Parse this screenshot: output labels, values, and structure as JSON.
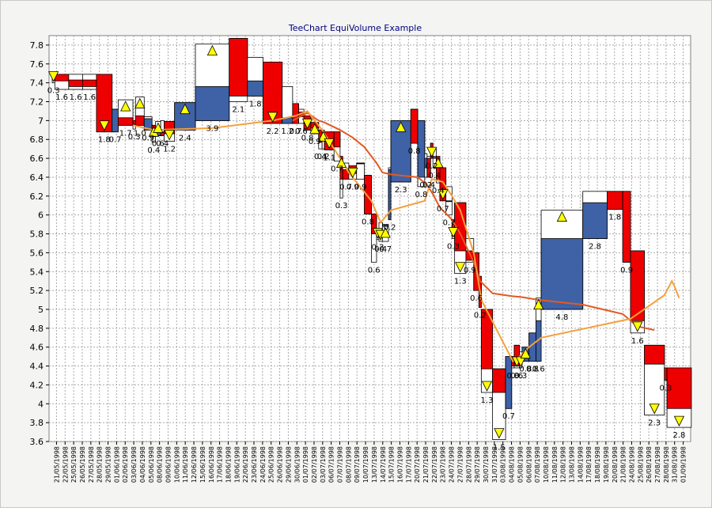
{
  "chart_data": {
    "type": "equivolume",
    "title": "TeeChart EquiVolume Example",
    "ylim": [
      3.6,
      7.9
    ],
    "yticks": [
      "3.6",
      "3.8",
      "4",
      "4.2",
      "4.4",
      "4.6",
      "4.8",
      "5",
      "5.2",
      "5.4",
      "5.6",
      "5.8",
      "6",
      "6.2",
      "6.4",
      "6.6",
      "6.8",
      "7",
      "7.2",
      "7.4",
      "7.6",
      "7.8"
    ],
    "grid": true,
    "colors": {
      "up": "#3f62a6",
      "down": "#ee0000",
      "neutral": "#ffffff",
      "ma_fast": "#f5a03c",
      "ma_slow": "#e25a22",
      "marker": "#ffff00"
    },
    "candles": [
      {
        "date": "21/05/1998",
        "open": 7.47,
        "high": 7.5,
        "low": 7.4,
        "close": 7.47,
        "volume": "0.3",
        "marker": "down"
      },
      {
        "date": "22/05/1998",
        "open": 7.49,
        "high": 7.49,
        "low": 7.33,
        "close": 7.42,
        "volume": "1.6"
      },
      {
        "date": "25/05/1998",
        "open": 7.43,
        "high": 7.49,
        "low": 7.33,
        "close": 7.36,
        "volume": "1.6"
      },
      {
        "date": "26/05/1998",
        "open": 7.43,
        "high": 7.49,
        "low": 7.33,
        "close": 7.36,
        "volume": "1.6"
      },
      {
        "date": "27/05/1998",
        "open": 7.49,
        "high": 7.49,
        "low": 6.88,
        "close": 6.88,
        "volume": "1.8",
        "marker": "down"
      },
      {
        "date": "28/05/1998",
        "open": 6.88,
        "high": 7.12,
        "low": 6.88,
        "close": 7.12,
        "volume": "0.7"
      },
      {
        "date": "29/05/1998",
        "open": 7.03,
        "high": 7.22,
        "low": 6.95,
        "close": 6.95,
        "volume": "1.7",
        "marker": "up"
      },
      {
        "date": "01/06/1998",
        "open": 7.0,
        "high": 7.0,
        "low": 6.91,
        "close": 6.96,
        "volume": "0.3"
      },
      {
        "date": "02/06/1998",
        "open": 7.05,
        "high": 7.25,
        "low": 6.95,
        "close": 6.95,
        "volume": "1.0",
        "marker": "up"
      },
      {
        "date": "03/06/1998",
        "open": 6.9,
        "high": 7.04,
        "low": 6.9,
        "close": 7.02,
        "volume": "0.9"
      },
      {
        "date": "04/06/1998",
        "open": 6.95,
        "high": 6.95,
        "low": 6.77,
        "close": 6.83,
        "volume": "0.4",
        "marker": "up"
      },
      {
        "date": "05/06/1998",
        "open": 6.84,
        "high": 6.99,
        "low": 6.84,
        "close": 6.92,
        "volume": "0.6",
        "marker": "up"
      },
      {
        "date": "08/06/1998",
        "open": 6.88,
        "high": 7.0,
        "low": 6.84,
        "close": 6.84,
        "volume": "0.4"
      },
      {
        "date": "09/06/1998",
        "open": 6.99,
        "high": 6.99,
        "low": 6.78,
        "close": 6.86,
        "volume": "1.2",
        "marker": "down"
      },
      {
        "date": "10/06/1998",
        "open": 6.9,
        "high": 7.19,
        "low": 6.9,
        "close": 7.19,
        "volume": "2.4",
        "marker": "up"
      },
      {
        "date": "11/06/1998",
        "open": 7.0,
        "high": 7.81,
        "low": 7.0,
        "close": 7.36,
        "volume": "3.9",
        "marker": "up"
      },
      {
        "date": "12/06/1998",
        "open": 7.87,
        "high": 7.87,
        "low": 7.2,
        "close": 7.26,
        "volume": "2.1"
      },
      {
        "date": "15/06/1998",
        "open": 7.26,
        "high": 7.67,
        "low": 7.26,
        "close": 7.42,
        "volume": "1.8"
      },
      {
        "date": "16/06/1998",
        "open": 7.62,
        "high": 7.62,
        "low": 6.97,
        "close": 6.97,
        "volume": "2.2",
        "marker": "down"
      },
      {
        "date": "17/06/1998",
        "open": 6.97,
        "high": 7.36,
        "low": 6.97,
        "close": 7.03,
        "volume": "1.2"
      },
      {
        "date": "18/06/1998",
        "open": 7.18,
        "high": 7.18,
        "low": 6.97,
        "close": 6.97,
        "volume": "0.7"
      },
      {
        "date": "19/06/1998",
        "open": 7.09,
        "high": 7.12,
        "low": 6.97,
        "close": 7.04,
        "volume": "0.6"
      },
      {
        "date": "22/06/1998",
        "open": 7.05,
        "high": 7.05,
        "low": 6.9,
        "close": 6.9,
        "volume": "0.8",
        "marker": "down"
      },
      {
        "date": "23/06/1998",
        "open": 6.98,
        "high": 6.98,
        "low": 6.86,
        "close": 6.92,
        "volume": "0.9",
        "marker": "up"
      },
      {
        "date": "24/06/1998",
        "open": 6.9,
        "high": 6.9,
        "low": 6.7,
        "close": 6.77,
        "volume": "0.4"
      },
      {
        "date": "25/06/1998",
        "open": 6.85,
        "high": 6.9,
        "low": 6.7,
        "close": 6.85,
        "volume": "0.2",
        "marker": "up"
      },
      {
        "date": "26/06/1998",
        "open": 6.88,
        "high": 6.88,
        "low": 6.69,
        "close": 6.69,
        "volume": "1.1",
        "marker": "down"
      },
      {
        "date": "29/06/1998",
        "open": 6.88,
        "high": 6.88,
        "low": 6.57,
        "close": 6.72,
        "volume": "0.7"
      },
      {
        "date": "30/06/1998",
        "open": 6.62,
        "high": 6.62,
        "low": 6.18,
        "close": 6.38,
        "volume": "0.3",
        "marker": "up"
      },
      {
        "date": "01/07/1998",
        "open": 6.48,
        "high": 6.55,
        "low": 6.38,
        "close": 6.38,
        "volume": "0.7"
      },
      {
        "date": "02/07/1998",
        "open": 6.52,
        "high": 6.52,
        "low": 6.38,
        "close": 6.44,
        "volume": "0.9",
        "marker": "down"
      },
      {
        "date": "03/07/1998",
        "open": 6.55,
        "high": 6.55,
        "low": 6.38,
        "close": 6.55,
        "volume": "0.9"
      },
      {
        "date": "06/07/1998",
        "open": 6.42,
        "high": 6.42,
        "low": 6.01,
        "close": 6.01,
        "volume": "0.8"
      },
      {
        "date": "07/07/1998",
        "open": 6.01,
        "high": 6.01,
        "low": 5.5,
        "close": 5.8,
        "volume": "0.6"
      },
      {
        "date": "08/07/1998",
        "open": 5.85,
        "high": 5.85,
        "low": 5.74,
        "close": 5.78,
        "volume": "0.2",
        "marker": "down"
      },
      {
        "date": "09/07/1998",
        "open": 5.8,
        "high": 5.92,
        "low": 5.72,
        "close": 5.8,
        "volume": "0.4",
        "marker": "down"
      },
      {
        "date": "10/07/1998",
        "open": 5.88,
        "high": 5.88,
        "low": 5.72,
        "close": 5.9,
        "volume": "0.7",
        "marker": "up"
      },
      {
        "date": "13/07/1998",
        "open": 5.95,
        "high": 6.5,
        "low": 5.95,
        "close": 6.48,
        "volume": "0.2"
      },
      {
        "date": "14/07/1998",
        "open": 6.35,
        "high": 7.0,
        "low": 6.35,
        "close": 7.0,
        "volume": "2.3",
        "marker": "up"
      },
      {
        "date": "15/07/1998",
        "open": 7.12,
        "high": 7.12,
        "low": 6.76,
        "close": 6.76,
        "volume": "0.8"
      },
      {
        "date": "16/07/1998",
        "open": 6.4,
        "high": 7.0,
        "low": 6.3,
        "close": 7.0,
        "volume": "0.8"
      },
      {
        "date": "17/07/1998",
        "open": 6.5,
        "high": 6.65,
        "low": 6.4,
        "close": 6.6,
        "volume": "0.2"
      },
      {
        "date": "20/07/1998",
        "open": 6.6,
        "high": 6.62,
        "low": 6.4,
        "close": 6.4,
        "volume": "0.4"
      },
      {
        "date": "21/07/1998",
        "open": 6.76,
        "high": 6.76,
        "low": 6.6,
        "close": 6.6,
        "volume": "0.2",
        "marker": "down"
      },
      {
        "date": "22/07/1998",
        "open": 6.6,
        "high": 6.7,
        "low": 6.5,
        "close": 6.62,
        "volume": "0.4"
      },
      {
        "date": "23/07/1998",
        "open": 6.62,
        "high": 6.62,
        "low": 6.34,
        "close": 6.38,
        "volume": "0.4",
        "marker": "up"
      },
      {
        "date": "24/07/1998",
        "open": 6.5,
        "high": 6.5,
        "low": 6.15,
        "close": 6.15,
        "volume": "0.7",
        "marker": "down"
      },
      {
        "date": "27/07/1998",
        "open": 6.15,
        "high": 6.3,
        "low": 6.0,
        "close": 6.15,
        "volume": "0.7"
      },
      {
        "date": "28/07/1998",
        "open": 5.9,
        "high": 5.95,
        "low": 5.75,
        "close": 5.78,
        "volume": "0.3",
        "marker": "down"
      },
      {
        "date": "29/07/1998",
        "open": 6.13,
        "high": 6.13,
        "low": 5.38,
        "close": 5.62,
        "volume": "1.3",
        "marker": "down"
      },
      {
        "date": "30/07/1998",
        "open": 5.62,
        "high": 5.75,
        "low": 5.5,
        "close": 5.52,
        "volume": "0.9"
      },
      {
        "date": "31/07/1998",
        "open": 5.6,
        "high": 5.6,
        "low": 5.2,
        "close": 5.2,
        "volume": "0.6"
      },
      {
        "date": "03/08/1998",
        "open": 5.35,
        "high": 5.35,
        "low": 5.02,
        "close": 5.02,
        "volume": "0.2"
      },
      {
        "date": "04/08/1998",
        "open": 5.0,
        "high": 5.0,
        "low": 4.12,
        "close": 4.37,
        "volume": "1.3",
        "marker": "down"
      },
      {
        "date": "05/08/1998",
        "open": 4.37,
        "high": 4.37,
        "low": 3.62,
        "close": 4.12,
        "volume": "1.5",
        "marker": "down"
      },
      {
        "date": "06/08/1998",
        "open": 3.95,
        "high": 4.5,
        "low": 3.95,
        "close": 4.5,
        "volume": "0.7"
      },
      {
        "date": "07/08/1998",
        "open": 4.5,
        "high": 4.5,
        "low": 4.38,
        "close": 4.4,
        "volume": "0.3"
      },
      {
        "date": "10/08/1998",
        "open": 4.62,
        "high": 4.62,
        "low": 4.38,
        "close": 4.4,
        "volume": "0.6",
        "marker": "down"
      },
      {
        "date": "11/08/1998",
        "open": 4.5,
        "high": 4.55,
        "low": 4.38,
        "close": 4.42,
        "volume": "0.3",
        "marker": "down"
      },
      {
        "date": "12/08/1998",
        "open": 4.45,
        "high": 4.6,
        "low": 4.45,
        "close": 4.6,
        "volume": "0.8",
        "marker": "up"
      },
      {
        "date": "13/08/1998",
        "open": 4.45,
        "high": 4.75,
        "low": 4.45,
        "close": 4.75,
        "volume": "0.8"
      },
      {
        "date": "14/08/1998",
        "open": 4.45,
        "high": 5.12,
        "low": 4.45,
        "close": 4.88,
        "volume": "0.6",
        "marker": "up"
      },
      {
        "date": "17/08/1998",
        "open": 5.0,
        "high": 6.05,
        "low": 5.0,
        "close": 5.75,
        "volume": "4.8",
        "marker": "up"
      },
      {
        "date": "18/08/1998",
        "open": 5.75,
        "high": 6.25,
        "low": 5.75,
        "close": 6.13,
        "volume": "2.8"
      },
      {
        "date": "20/08/1998",
        "open": 6.25,
        "high": 6.25,
        "low": 6.06,
        "close": 6.06,
        "volume": "1.8"
      },
      {
        "date": "21/08/1998",
        "open": 6.25,
        "high": 6.25,
        "low": 5.5,
        "close": 5.5,
        "volume": "0.9"
      },
      {
        "date": "24/08/1998",
        "open": 5.62,
        "high": 5.62,
        "low": 4.75,
        "close": 4.88,
        "volume": "1.6",
        "marker": "down"
      },
      {
        "date": "25/08/1998",
        "open": 4.62,
        "high": 4.62,
        "low": 3.88,
        "close": 4.42,
        "volume": "2.3",
        "marker": "down"
      },
      {
        "date": "26/08/1998",
        "open": 4.38,
        "high": 4.38,
        "low": 4.25,
        "close": 4.25,
        "volume": "0.3"
      },
      {
        "date": "27/08/1998",
        "open": 4.38,
        "high": 4.38,
        "low": 3.75,
        "close": 3.95,
        "volume": "2.8",
        "marker": "down"
      }
    ],
    "xlabels": [
      "21/05/1998",
      "22/05/1998",
      "25/05/1998",
      "26/05/1998",
      "27/05/1998",
      "28/05/1998",
      "29/05/1998",
      "01/06/1998",
      "02/06/1998",
      "03/06/1998",
      "04/06/1998",
      "05/06/1998",
      "08/06/1998",
      "09/06/1998",
      "10/06/1998",
      "11/06/1998",
      "12/06/1998",
      "15/06/1998",
      "16/06/1998",
      "17/06/1998",
      "18/06/1998",
      "19/06/1998",
      "22/06/1998",
      "23/06/1998",
      "24/06/1998",
      "25/06/1998",
      "26/06/1998",
      "29/06/1998",
      "30/06/1998",
      "01/07/1998",
      "02/07/1998",
      "03/07/1998",
      "06/07/1998",
      "07/07/1998",
      "08/07/1998",
      "09/07/1998",
      "10/07/1998",
      "13/07/1998",
      "14/07/1998",
      "15/07/1998",
      "16/07/1998",
      "17/07/1998",
      "20/07/1998",
      "21/07/1998",
      "22/07/1998",
      "23/07/1998",
      "24/07/1998",
      "27/07/1998",
      "28/07/1998",
      "29/07/1998",
      "30/07/1998",
      "31/07/1998",
      "03/08/1998",
      "04/08/1998",
      "05/08/1998",
      "06/08/1998",
      "07/08/1998",
      "10/08/1998",
      "11/08/1998",
      "12/08/1998",
      "13/08/1998",
      "14/08/1998",
      "17/08/1998",
      "18/08/1998",
      "19/08/1998",
      "20/08/1998",
      "21/08/1998",
      "24/08/1998",
      "25/08/1998",
      "26/08/1998",
      "27/08/1998",
      "28/08/1998",
      "31/08/1998",
      "01/09/1998"
    ],
    "ma_fast": [
      [
        7.0,
        6.95
      ],
      [
        10.5,
        6.9
      ],
      [
        15.5,
        6.92
      ],
      [
        18.5,
        7.0
      ],
      [
        20.5,
        7.05
      ],
      [
        22.5,
        7.1
      ],
      [
        25.0,
        6.9
      ],
      [
        27.5,
        6.65
      ],
      [
        30.0,
        6.45
      ],
      [
        33.0,
        6.15
      ],
      [
        35.5,
        5.92
      ],
      [
        38.0,
        6.05
      ],
      [
        41.0,
        6.15
      ],
      [
        43.5,
        6.38
      ],
      [
        46.5,
        6.35
      ],
      [
        48.0,
        6.2
      ],
      [
        49.5,
        6.05
      ],
      [
        51.0,
        5.6
      ],
      [
        53.0,
        5.1
      ],
      [
        55.0,
        4.6
      ],
      [
        56.5,
        4.45
      ],
      [
        58.0,
        4.5
      ],
      [
        60.0,
        4.6
      ],
      [
        62.0,
        4.7
      ],
      [
        66.0,
        4.9
      ],
      [
        68.0,
        5.15
      ],
      [
        69.2,
        5.3
      ],
      [
        70.2,
        5.3
      ],
      [
        71.3,
        5.25
      ],
      [
        72.5,
        5.12
      ]
    ],
    "ma_slow": [
      [
        20.0,
        7.0
      ],
      [
        22.5,
        7.08
      ],
      [
        24.0,
        7.0
      ],
      [
        26.0,
        6.98
      ],
      [
        28.0,
        6.9
      ],
      [
        30.5,
        6.82
      ],
      [
        32.0,
        6.72
      ],
      [
        34.0,
        6.55
      ],
      [
        36.0,
        6.45
      ],
      [
        38.0,
        6.43
      ],
      [
        40.0,
        6.4
      ],
      [
        42.0,
        6.32
      ],
      [
        44.0,
        6.22
      ],
      [
        46.0,
        6.08
      ],
      [
        48.0,
        5.95
      ],
      [
        49.5,
        5.8
      ],
      [
        51.0,
        5.5
      ],
      [
        52.5,
        5.3
      ],
      [
        54.0,
        5.17
      ],
      [
        56.0,
        5.14
      ],
      [
        59.0,
        5.13
      ],
      [
        61.5,
        5.1
      ],
      [
        63.0,
        5.05
      ],
      [
        65.0,
        4.95
      ],
      [
        66.5,
        4.82
      ],
      [
        67.5,
        4.78
      ]
    ]
  }
}
